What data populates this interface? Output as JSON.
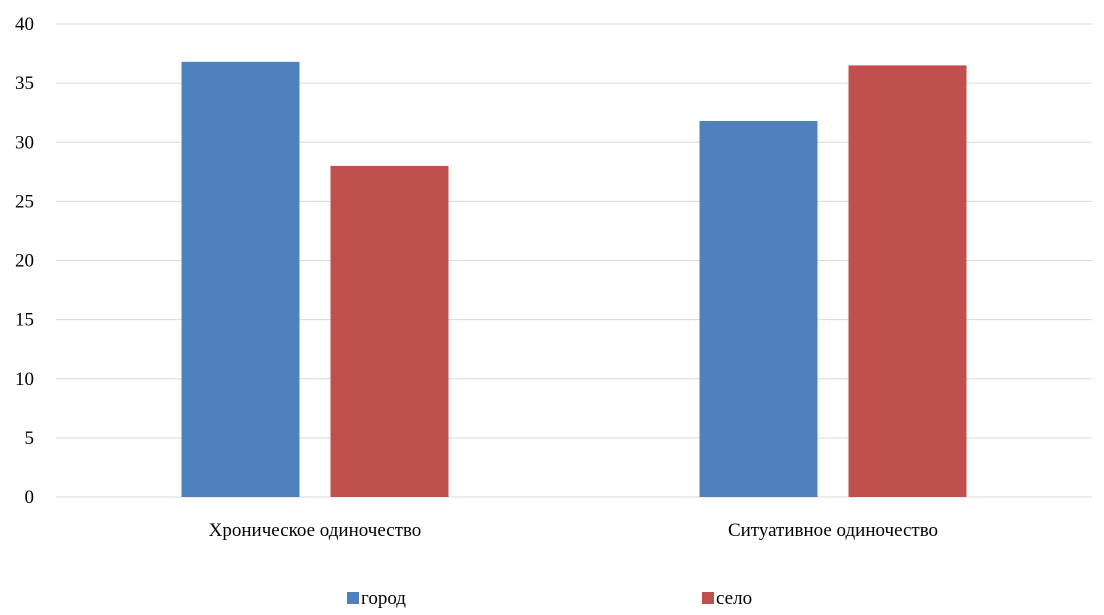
{
  "chart_data": {
    "type": "bar",
    "categories": [
      "Хроническое одиночество",
      "Ситуативное одиночество"
    ],
    "series": [
      {
        "name": "город",
        "values": [
          36.8,
          31.8
        ],
        "color": "#4f81bd"
      },
      {
        "name": "село",
        "values": [
          28.0,
          36.5
        ],
        "color": "#c0504d"
      }
    ],
    "ylim": [
      0,
      40
    ],
    "yticks": [
      0,
      5,
      10,
      15,
      20,
      25,
      30,
      35,
      40
    ],
    "grid": true,
    "legend_position": "bottom"
  }
}
